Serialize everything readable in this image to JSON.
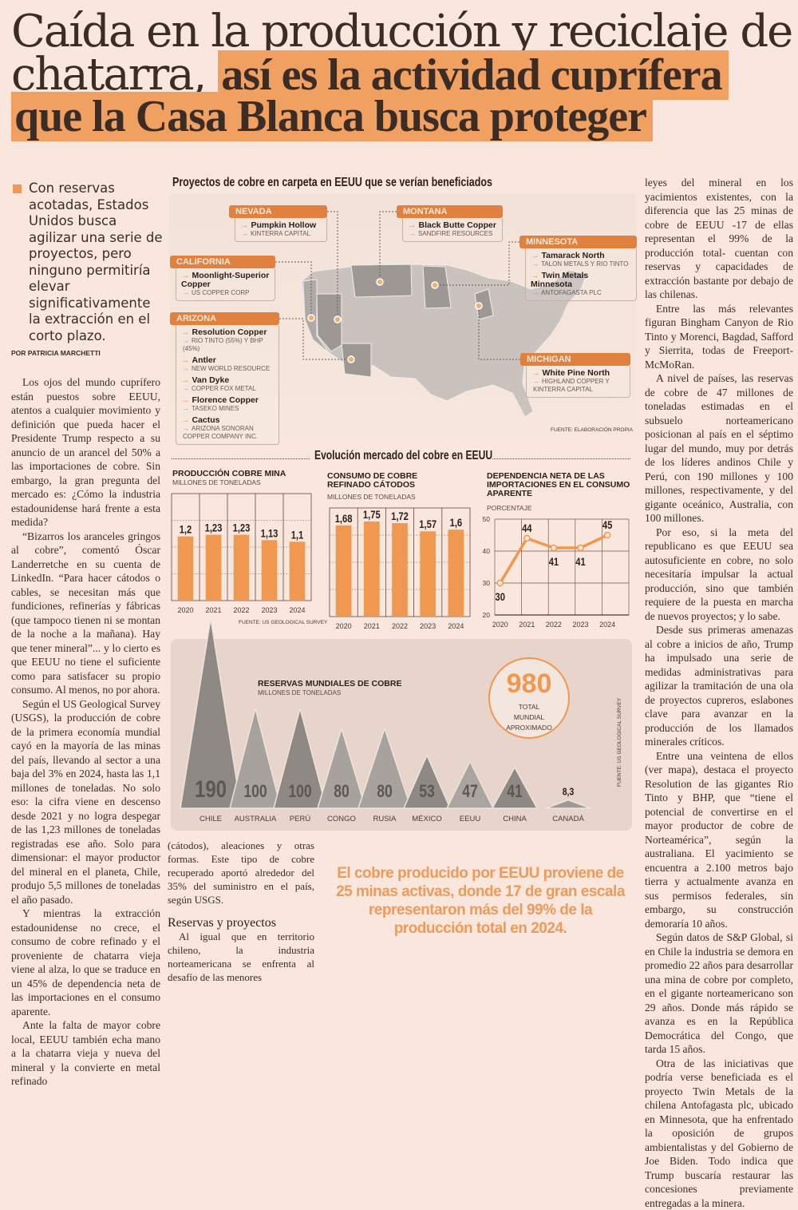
{
  "headline": {
    "line1": "Caída en la producción y reciclaje de",
    "line2_plain": "chatarra,",
    "line2_highlight": "así es la actividad cuprífera",
    "line3_highlight": "que la Casa Blanca busca proteger"
  },
  "lead": "Con reservas acotadas, Estados Unidos busca agilizar una serie de proyectos, pero ninguno permitiría elevar significativamente la extracción en el corto plazo.",
  "byline": "POR PATRICIA MARCHETTI",
  "colors": {
    "accent": "#f0984f",
    "background": "#f9e7dd",
    "text": "#3b2c25"
  },
  "left_column": [
    "Los ojos del mundo cuprífero están puestos sobre EEUU, atentos a cualquier movimiento y definición que pueda hacer el Presidente Trump respecto a su anuncio de un arancel del 50% a las importaciones de cobre. Sin embargo, la gran pregunta del mercado es: ¿Cómo la industria estadounidense hará frente a esta medida?",
    "“Bizarros los aranceles gringos al cobre”, comentó Óscar Landerretche en su cuenta de LinkedIn. “Para hacer cátodos o cables, se necesitan más que fundiciones, refinerías y fábricas (que tampoco tienen ni se montan de la noche a la mañana). Hay que tener mineral”... y lo cierto es que EEUU no tiene el suficiente como para satisfacer su propio consumo. Al menos, no por ahora.",
    "Según el US Geological Survey (USGS), la producción de cobre de la primera economía mundial cayó en la mayoría de las minas del país, llevando al sector a una baja del 3% en 2024, hasta las 1,1 millones de toneladas. No solo eso: la cifra viene en descenso desde 2021 y no logra despegar de las 1,23 millones de toneladas registradas ese año. Solo para dimensionar: el mayor productor del mineral en el planeta, Chile, produjo 5,5 millones de toneladas el año pasado.",
    "Y mientras la extracción estadounidense no crece, el consumo de cobre refinado y el proveniente de chatarra vieja viene al alza, lo que se traduce en un 45% de dependencia neta de las importaciones en el consumo aparente.",
    "Ante la falta de mayor cobre local, EEUU también echa mano a la chatarra vieja y nueva del mineral y la convierte en metal refinado"
  ],
  "middle_column": {
    "continuation": "(cátodos), aleaciones y otras formas. Este tipo de cobre recuperado aportó alrededor del 35% del suministro en el país, según USGS.",
    "subhead": "Reservas y proyectos",
    "paragraph": "Al igual que en territorio chileno, la industria norteamericana se enfrenta al desafío de las menores"
  },
  "right_column": [
    "leyes del mineral en los yacimientos existentes, con la diferencia que las 25 minas de cobre de EEUU -17 de ellas representan el 99% de la producción total- cuentan con reservas y capacidades de extracción bastante por debajo de las chilenas.",
    "Entre las más relevantes figuran Bingham Canyon de Rio Tinto y Morenci, Bagdad, Safford y Sierrita, todas de Freeport-McMoRan.",
    "A nivel de países, las reservas de cobre de 47 millones de toneladas estimadas en el subsuelo norteamericano posicionan al país en el séptimo lugar del mundo, muy por detrás de los líderes andinos Chile y Perú, con 190 millones y 100 millones, respectivamente, y del gigante oceánico, Australia, con 100 millones.",
    "Por eso, si la meta del republicano es que EEUU sea autosuficiente en cobre, no solo necesitaría impulsar la actual producción, sino que también requiere de la puesta en marcha de nuevos proyectos; y lo sabe.",
    "Desde sus primeras amenazas al cobre a inicios de año, Trump ha impulsado una serie de medidas administrativas para agilizar la tramitación de una ola de proyectos cupreros, eslabones clave para avanzar en la producción de los llamados minerales críticos.",
    "Entre una veintena de ellos (ver mapa), destaca el proyecto Resolution de las gigantes Rio Tinto y BHP, que “tiene el potencial de convertirse en el mayor productor de cobre de Norteamérica”, según la australiana. El yacimiento se encuentra a 2.100 metros bajo tierra y actualmente avanza en sus permisos federales, sin embargo, su construcción demoraría 10 años.",
    "Según datos de S&P Global, si en Chile la industria se demora en promedio 22 años para desarrollar una mina de cobre por completo, en el gigante norteamericano son 29 años. Donde más rápido se avanza es en la República Democrática del Congo, que tarda 15 años.",
    "Otra de las iniciativas que podría verse beneficiada es el proyecto Twin Metals de la chilena Antofagasta plc, ubicado en Minnesota, que ha enfrentado la oposición de grupos ambientalistas y del Gobierno de Joe Biden. Todo indica que Trump buscaría restaurar las concesiones previamente entregadas a la minera."
  ],
  "map": {
    "title": "Proyectos de cobre en carpeta en EEUU que se verían beneficiados",
    "source": "FUENTE: ELABORACIÓN PROPIA",
    "states": [
      {
        "name": "NEVADA",
        "projects": [
          {
            "project": "Pumpkin Hollow",
            "company": "KINTERRA CAPITAL"
          }
        ]
      },
      {
        "name": "CALIFORNIA",
        "projects": [
          {
            "project": "Moonlight-Superior Copper",
            "company": "US COPPER CORP"
          }
        ]
      },
      {
        "name": "ARIZONA",
        "projects": [
          {
            "project": "Resolution Copper",
            "company": "RIO TINTO (55%) Y BHP (45%)"
          },
          {
            "project": "Antler",
            "company": "NEW WORLD RESOURCE"
          },
          {
            "project": "Van Dyke",
            "company": "COPPER FOX METAL"
          },
          {
            "project": "Florence Copper",
            "company": "TASEKO MINES"
          },
          {
            "project": "Cactus",
            "company": "ARIZONA SONORAN COPPER COMPANY INC."
          }
        ]
      },
      {
        "name": "MONTANA",
        "projects": [
          {
            "project": "Black Butte Copper",
            "company": "SANDFIRE RESOURCES"
          }
        ]
      },
      {
        "name": "MINNESOTA",
        "projects": [
          {
            "project": "Tamarack North",
            "company": "TALON METALS Y RIO TINTO"
          },
          {
            "project": "Twin Metals Minnesota",
            "company": "ANTOFAGASTA PLC"
          }
        ]
      },
      {
        "name": "MICHIGAN",
        "projects": [
          {
            "project": "White Pine North",
            "company": "HIGHLAND COPPER Y KINTERRA CAPITAL"
          }
        ]
      }
    ]
  },
  "section_title": "Evolución mercado del cobre en EEUU",
  "chart_data": [
    {
      "type": "bar",
      "title": "PRODUCCIÓN COBRE MINA",
      "subtitle": "MILLONES DE TONELADAS",
      "categories": [
        "2020",
        "2021",
        "2022",
        "2023",
        "2024"
      ],
      "values": [
        1.2,
        1.23,
        1.23,
        1.13,
        1.1
      ],
      "labels": [
        "1,2",
        "1,23",
        "1,23",
        "1,13",
        "1,1"
      ],
      "ylim": [
        0,
        2
      ],
      "source": "FUENTE: US GEOLOGICAL SURVEY"
    },
    {
      "type": "bar",
      "title": "CONSUMO DE COBRE REFINADO CÁTODOS",
      "subtitle": "MILLONES DE TONELADAS",
      "categories": [
        "2020",
        "2021",
        "2022",
        "2023",
        "2024"
      ],
      "values": [
        1.68,
        1.75,
        1.72,
        1.57,
        1.6
      ],
      "labels": [
        "1,68",
        "1,75",
        "1,72",
        "1,57",
        "1,6"
      ],
      "ylim": [
        0,
        2
      ]
    },
    {
      "type": "line",
      "title": "DEPENDENCIA NETA DE LAS IMPORTACIONES EN EL CONSUMO APARENTE",
      "subtitle": "PORCENTAJE",
      "categories": [
        "2020",
        "2021",
        "2022",
        "2023",
        "2024"
      ],
      "values": [
        30,
        44,
        41,
        41,
        45
      ],
      "labels": [
        "30",
        "44",
        "41",
        "41",
        "45"
      ],
      "ylim": [
        20,
        50
      ],
      "yticks": [
        "20",
        "30",
        "40",
        "50"
      ]
    },
    {
      "type": "bar",
      "title": "RESERVAS MUNDIALES DE COBRE",
      "subtitle": "MILLONES DE TONELADAS",
      "categories": [
        "CHILE",
        "AUSTRALIA",
        "PERÚ",
        "CONGO",
        "RUSIA",
        "MÉXICO",
        "EEUU",
        "CHINA",
        "CANADÁ"
      ],
      "values": [
        190,
        100,
        100,
        80,
        80,
        53,
        47,
        41,
        8.3
      ],
      "labels": [
        "190",
        "100",
        "100",
        "80",
        "80",
        "53",
        "47",
        "41",
        "8,3"
      ],
      "total": "980",
      "total_label": "TOTAL MUNDIAL APROXIMADO",
      "source": "FUENTE: US GEOLOGICAL SURVEY"
    }
  ],
  "pullquote": "El cobre producido por EEUU proviene de 25 minas activas, donde 17 de gran escala representaron más del 99% de la producción total en 2024."
}
